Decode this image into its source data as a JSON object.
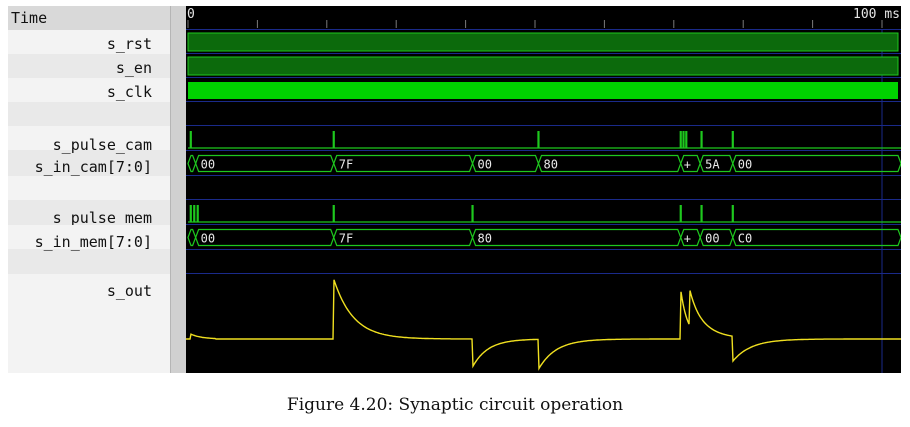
{
  "window": {
    "time_header": "Time",
    "ruler_start": "0",
    "ruler_end": "100 ms"
  },
  "signals": [
    {
      "name": "s_rst",
      "type": "level"
    },
    {
      "name": "s_en",
      "type": "level"
    },
    {
      "name": "s_clk",
      "type": "clock"
    },
    {
      "name": "",
      "type": "blank"
    },
    {
      "name": "s_pulse_cam",
      "type": "pulses"
    },
    {
      "name": "s_in_cam[7:0]",
      "type": "bus"
    },
    {
      "name": "",
      "type": "blank"
    },
    {
      "name": "s_pulse_mem",
      "type": "pulses"
    },
    {
      "name": "s_in_mem[7:0]",
      "type": "bus"
    },
    {
      "name": "",
      "type": "blank"
    },
    {
      "name": "s_out",
      "type": "analog"
    }
  ],
  "traces": {
    "s_pulse_cam_ms": [
      0.4,
      21,
      50.5,
      71,
      71.4,
      71.8,
      74,
      78.5
    ],
    "s_in_cam": [
      {
        "from": 0,
        "to": 1.1,
        "value": ""
      },
      {
        "from": 1.1,
        "to": 21,
        "value": "00"
      },
      {
        "from": 21,
        "to": 41,
        "value": "7F"
      },
      {
        "from": 41,
        "to": 50.5,
        "value": "00"
      },
      {
        "from": 50.5,
        "to": 71,
        "value": "80"
      },
      {
        "from": 71,
        "to": 73.8,
        "value": "+"
      },
      {
        "from": 73.8,
        "to": 78.5,
        "value": "5A"
      },
      {
        "from": 78.5,
        "to": 100,
        "value": "00"
      }
    ],
    "s_pulse_mem_ms": [
      0.4,
      0.9,
      1.4,
      21,
      41,
      71,
      74,
      78.5
    ],
    "s_in_mem": [
      {
        "from": 0,
        "to": 1.1,
        "value": ""
      },
      {
        "from": 1.1,
        "to": 21,
        "value": "00"
      },
      {
        "from": 21,
        "to": 41,
        "value": "7F"
      },
      {
        "from": 41,
        "to": 71,
        "value": "80"
      },
      {
        "from": 71,
        "to": 73.8,
        "value": "+"
      },
      {
        "from": 73.8,
        "to": 78.5,
        "value": "00"
      },
      {
        "from": 78.5,
        "to": 100,
        "value": "C0"
      }
    ]
  },
  "caption": "Figure 4.20: Synaptic circuit operation",
  "colors": {
    "wave_bg": "#000000",
    "signal_green": "#1ec81e",
    "level_fill": "#0c6a0c",
    "clock_fill": "#00d200",
    "analog_yellow": "#f0e020",
    "grid_blue": "#1a2a8a"
  }
}
